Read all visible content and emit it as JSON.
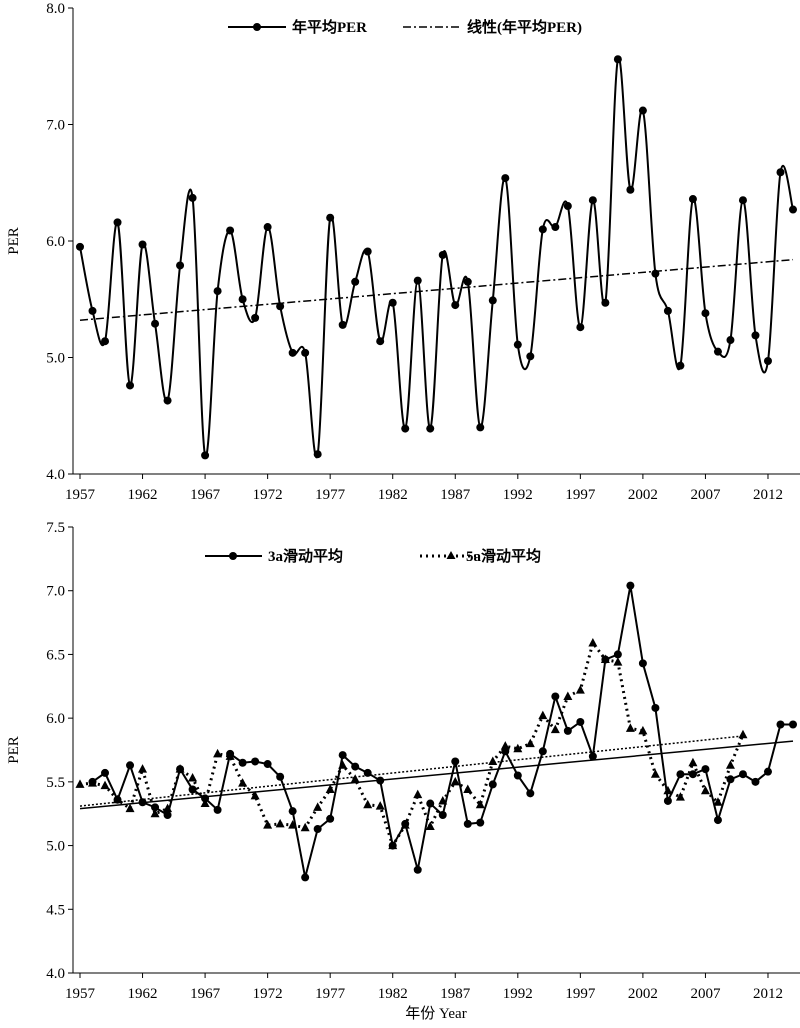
{
  "chart_data": [
    {
      "type": "line",
      "title": "",
      "xlabel": "",
      "ylabel": "PER",
      "ylim": [
        4.0,
        8.0
      ],
      "xlim": [
        1957,
        2014
      ],
      "yticks": [
        "4.0",
        "5.0",
        "6.0",
        "7.0",
        "8.0"
      ],
      "xticks": [
        "1957",
        "1962",
        "1967",
        "1972",
        "1977",
        "1982",
        "1987",
        "1992",
        "1997",
        "2002",
        "2007",
        "2012"
      ],
      "legend_position": "top-center",
      "smooth": true,
      "series": [
        {
          "name": "年平均PER",
          "marker": "circle",
          "line": "solid",
          "color": "#000000",
          "x": [
            1957,
            1958,
            1959,
            1960,
            1961,
            1962,
            1963,
            1964,
            1965,
            1966,
            1967,
            1968,
            1969,
            1970,
            1971,
            1972,
            1973,
            1974,
            1975,
            1976,
            1977,
            1978,
            1979,
            1980,
            1981,
            1982,
            1983,
            1984,
            1985,
            1986,
            1987,
            1988,
            1989,
            1990,
            1991,
            1992,
            1993,
            1994,
            1995,
            1996,
            1997,
            1998,
            1999,
            2000,
            2001,
            2002,
            2003,
            2004,
            2005,
            2006,
            2007,
            2008,
            2009,
            2010,
            2011,
            2012,
            2013,
            2014
          ],
          "values": [
            5.95,
            5.4,
            5.14,
            6.16,
            4.76,
            5.97,
            5.29,
            4.63,
            5.79,
            6.37,
            4.16,
            5.57,
            6.09,
            5.5,
            5.34,
            6.12,
            5.44,
            5.04,
            5.04,
            4.17,
            6.2,
            5.28,
            5.65,
            5.91,
            5.14,
            5.47,
            4.39,
            5.66,
            4.39,
            5.88,
            5.45,
            5.65,
            4.4,
            5.49,
            6.54,
            5.11,
            5.01,
            6.1,
            6.12,
            6.3,
            5.26,
            6.35,
            5.47,
            7.56,
            6.44,
            7.12,
            5.72,
            5.4,
            4.93,
            6.36,
            5.38,
            5.05,
            5.15,
            6.35,
            5.19,
            4.97,
            6.59,
            6.27
          ]
        },
        {
          "name": "线性(年平均PER)",
          "marker": "none",
          "line": "dash-dot",
          "color": "#000000",
          "x": [
            1957,
            2014
          ],
          "values": [
            5.32,
            5.84
          ]
        }
      ]
    },
    {
      "type": "line",
      "title": "",
      "xlabel": "年份 Year",
      "ylabel": "PER",
      "ylim": [
        4.0,
        7.5
      ],
      "xlim": [
        1957,
        2014
      ],
      "yticks": [
        "4.0",
        "4.5",
        "5.0",
        "5.5",
        "6.0",
        "6.5",
        "7.0",
        "7.5"
      ],
      "xticks": [
        "1957",
        "1962",
        "1967",
        "1972",
        "1977",
        "1982",
        "1987",
        "1992",
        "1997",
        "2002",
        "2007",
        "2012"
      ],
      "legend_position": "top-center",
      "series": [
        {
          "name": "3a滑动平均",
          "marker": "circle",
          "line": "solid",
          "color": "#000000",
          "x": [
            1958,
            1959,
            1960,
            1961,
            1962,
            1963,
            1964,
            1965,
            1966,
            1967,
            1968,
            1969,
            1970,
            1971,
            1972,
            1973,
            1974,
            1975,
            1976,
            1977,
            1978,
            1979,
            1980,
            1981,
            1982,
            1983,
            1984,
            1985,
            1986,
            1987,
            1988,
            1989,
            1990,
            1991,
            1992,
            1993,
            1994,
            1995,
            1996,
            1997,
            1998,
            1999,
            2000,
            2001,
            2002,
            2003,
            2004,
            2005,
            2006,
            2007,
            2008,
            2009,
            2010,
            2011,
            2012,
            2013,
            2014
          ],
          "values": [
            5.5,
            5.57,
            5.36,
            5.63,
            5.34,
            5.3,
            5.24,
            5.6,
            5.44,
            5.37,
            5.28,
            5.72,
            5.65,
            5.66,
            5.64,
            5.54,
            5.27,
            4.75,
            5.13,
            5.21,
            5.71,
            5.62,
            5.57,
            5.51,
            5.0,
            5.17,
            4.81,
            5.33,
            5.24,
            5.66,
            5.17,
            5.18,
            5.48,
            5.74,
            5.55,
            5.41,
            5.74,
            6.17,
            5.9,
            5.97,
            5.7,
            6.46,
            6.5,
            7.04,
            6.43,
            6.08,
            5.35,
            5.56,
            5.56,
            5.6,
            5.2,
            5.52,
            5.56,
            5.5,
            5.58,
            5.95,
            5.95
          ]
        },
        {
          "name": "5a滑动平均",
          "marker": "triangle",
          "line": "dotted",
          "color": "#000000",
          "x": [
            1957,
            1958,
            1959,
            1960,
            1961,
            1962,
            1963,
            1964,
            1965,
            1966,
            1967,
            1968,
            1969,
            1970,
            1971,
            1972,
            1973,
            1974,
            1975,
            1976,
            1977,
            1978,
            1979,
            1980,
            1981,
            1982,
            1983,
            1984,
            1985,
            1986,
            1987,
            1988,
            1989,
            1990,
            1991,
            1992,
            1993,
            1994,
            1995,
            1996,
            1997,
            1998,
            1999,
            2000,
            2001,
            2002,
            2003,
            2004,
            2005,
            2006,
            2007,
            2008,
            2009,
            2010
          ],
          "values": [
            5.48,
            5.49,
            5.47,
            5.36,
            5.29,
            5.6,
            5.25,
            5.29,
            5.6,
            5.53,
            5.33,
            5.72,
            5.7,
            5.49,
            5.39,
            5.16,
            5.17,
            5.16,
            5.14,
            5.3,
            5.44,
            5.63,
            5.52,
            5.32,
            5.31,
            5.0,
            5.16,
            5.4,
            5.15,
            5.35,
            5.5,
            5.44,
            5.32,
            5.66,
            5.78,
            5.76,
            5.8,
            6.02,
            5.91,
            6.17,
            6.22,
            6.59,
            6.46,
            6.44,
            5.92,
            5.9,
            5.56,
            5.43,
            5.38,
            5.65,
            5.43,
            5.34,
            5.63,
            5.87
          ]
        },
        {
          "name": "",
          "marker": "none",
          "line": "solid",
          "color": "#000000",
          "x": [
            1957,
            2014
          ],
          "values": [
            5.29,
            5.82
          ]
        },
        {
          "name": "",
          "marker": "none",
          "line": "dotted",
          "color": "#000000",
          "x": [
            1957,
            2010
          ],
          "values": [
            5.31,
            5.86
          ]
        }
      ]
    }
  ]
}
